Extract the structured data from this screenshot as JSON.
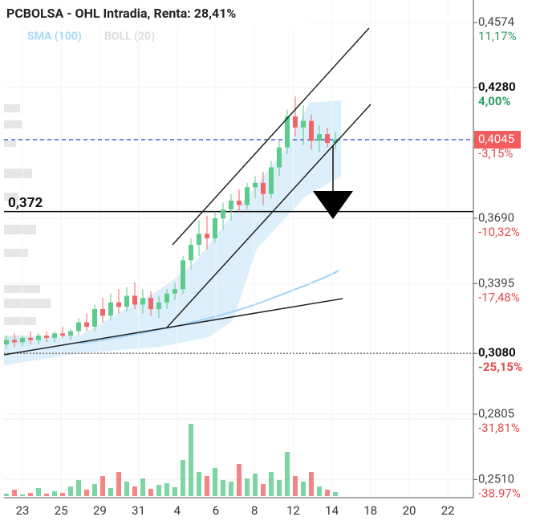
{
  "chart_data": {
    "type": "candlestick",
    "title": "PCBOLSA - OHL Intradia, Renta: 28,41%",
    "legend": [
      "SMA (100)",
      "BOLL (20)"
    ],
    "ylim": [
      0.2428,
      0.4676
    ],
    "yticks": [
      {
        "value": 0.4574,
        "label": "0,4574",
        "change": "11,17%"
      },
      {
        "value": 0.428,
        "label": "0,4280",
        "change": "4,00%"
      },
      {
        "value": 0.4045,
        "label": "0,4045",
        "change": "-3,15%"
      },
      {
        "value": 0.369,
        "label": "0,3690",
        "change": "-10,32%"
      },
      {
        "value": 0.3395,
        "label": "0,3395",
        "change": "-17,48%"
      },
      {
        "value": 0.308,
        "label": "0,3080",
        "change": "-25,15%"
      },
      {
        "value": 0.2805,
        "label": "0,2805",
        "change": "-31,81%"
      },
      {
        "value": 0.251,
        "label": "0,2510",
        "change": "-38.97%"
      }
    ],
    "x_labels": [
      "23",
      "25",
      "29",
      "31",
      "4",
      "6",
      "8",
      "12",
      "14",
      "18",
      "20",
      "22"
    ],
    "level_line": {
      "label": "0,372",
      "value": 0.372
    },
    "current_price": 0.4045,
    "dotted_level": 0.308,
    "up_color": "#5ccb8c",
    "down_color": "#f06666",
    "candles": [
      [
        0.312,
        0.316,
        0.31,
        0.314
      ],
      [
        0.314,
        0.317,
        0.311,
        0.313
      ],
      [
        0.313,
        0.316,
        0.311,
        0.315
      ],
      [
        0.315,
        0.318,
        0.312,
        0.314
      ],
      [
        0.314,
        0.317,
        0.312,
        0.316
      ],
      [
        0.316,
        0.318,
        0.313,
        0.315
      ],
      [
        0.315,
        0.318,
        0.313,
        0.317
      ],
      [
        0.317,
        0.32,
        0.315,
        0.316
      ],
      [
        0.316,
        0.319,
        0.314,
        0.318
      ],
      [
        0.318,
        0.324,
        0.316,
        0.322
      ],
      [
        0.322,
        0.326,
        0.318,
        0.32
      ],
      [
        0.32,
        0.33,
        0.318,
        0.328
      ],
      [
        0.328,
        0.333,
        0.322,
        0.325
      ],
      [
        0.325,
        0.335,
        0.323,
        0.331
      ],
      [
        0.331,
        0.337,
        0.326,
        0.329
      ],
      [
        0.329,
        0.338,
        0.327,
        0.334
      ],
      [
        0.334,
        0.34,
        0.328,
        0.33
      ],
      [
        0.33,
        0.337,
        0.326,
        0.333
      ],
      [
        0.333,
        0.336,
        0.325,
        0.328
      ],
      [
        0.328,
        0.334,
        0.324,
        0.331
      ],
      [
        0.331,
        0.337,
        0.328,
        0.335
      ],
      [
        0.335,
        0.34,
        0.332,
        0.337
      ],
      [
        0.337,
        0.352,
        0.335,
        0.35
      ],
      [
        0.35,
        0.36,
        0.346,
        0.357
      ],
      [
        0.357,
        0.368,
        0.352,
        0.362
      ],
      [
        0.362,
        0.37,
        0.355,
        0.36
      ],
      [
        0.36,
        0.372,
        0.358,
        0.369
      ],
      [
        0.369,
        0.376,
        0.364,
        0.373
      ],
      [
        0.373,
        0.38,
        0.368,
        0.377
      ],
      [
        0.377,
        0.382,
        0.372,
        0.375
      ],
      [
        0.375,
        0.385,
        0.373,
        0.383
      ],
      [
        0.383,
        0.388,
        0.378,
        0.385
      ],
      [
        0.385,
        0.39,
        0.375,
        0.38
      ],
      [
        0.38,
        0.395,
        0.378,
        0.392
      ],
      [
        0.392,
        0.404,
        0.388,
        0.401
      ],
      [
        0.401,
        0.418,
        0.398,
        0.415
      ],
      [
        0.415,
        0.424,
        0.406,
        0.41
      ],
      [
        0.41,
        0.42,
        0.402,
        0.413
      ],
      [
        0.413,
        0.416,
        0.4,
        0.404
      ],
      [
        0.404,
        0.411,
        0.399,
        0.407
      ],
      [
        0.407,
        0.41,
        0.401,
        0.403
      ],
      [
        0.403,
        0.408,
        0.4,
        0.4045
      ]
    ],
    "volumes": [
      3,
      8,
      2,
      4,
      10,
      3,
      6,
      4,
      12,
      20,
      8,
      15,
      25,
      10,
      30,
      18,
      12,
      22,
      9,
      14,
      16,
      11,
      45,
      90,
      30,
      25,
      35,
      20,
      18,
      40,
      22,
      28,
      15,
      30,
      20,
      55,
      25,
      18,
      30,
      12,
      8,
      5
    ]
  }
}
